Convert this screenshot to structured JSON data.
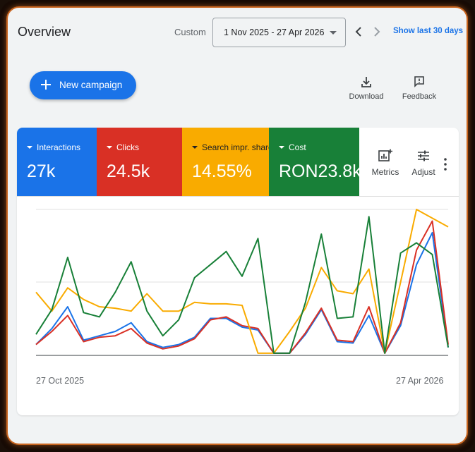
{
  "header": {
    "title": "Overview",
    "range_label": "Custom",
    "date_range": "1 Nov 2025 - 27 Apr 2026",
    "show_last": "Show last 30 days"
  },
  "toolbar": {
    "new_campaign": "New campaign",
    "download": "Download",
    "feedback": "Feedback"
  },
  "metrics": [
    {
      "name": "Interactions",
      "value": "27k",
      "color": "#1a73e8"
    },
    {
      "name": "Clicks",
      "value": "24.5k",
      "color": "#d93025"
    },
    {
      "name": "Search impr. share",
      "value": "14.55%",
      "color": "#f9ab00"
    },
    {
      "name": "Cost",
      "value": "RON23.8k",
      "color": "#188038"
    }
  ],
  "card_tools": {
    "metrics": "Metrics",
    "adjust": "Adjust"
  },
  "chart_data": {
    "type": "line",
    "x_start_label": "27 Oct 2025",
    "x_end_label": "27 Apr 2026",
    "ylim": [
      0,
      100
    ],
    "grid": true,
    "series": [
      {
        "name": "Interactions",
        "color": "#1a73e8",
        "values": [
          7,
          18,
          33,
          10,
          13,
          16,
          22,
          9,
          5,
          7,
          12,
          25,
          25,
          19,
          17,
          1,
          1,
          14,
          31,
          9,
          8,
          27,
          1,
          20,
          62,
          84,
          5
        ]
      },
      {
        "name": "Clicks",
        "color": "#d93025",
        "values": [
          7,
          16,
          27,
          9,
          12,
          13,
          18,
          8,
          4,
          6,
          11,
          24,
          26,
          20,
          18,
          1,
          1,
          15,
          32,
          10,
          9,
          33,
          1,
          22,
          72,
          92,
          7
        ]
      },
      {
        "name": "Search impr. share",
        "color": "#f9ab00",
        "values": [
          43,
          30,
          46,
          38,
          33,
          32,
          30,
          42,
          30,
          30,
          36,
          35,
          35,
          34,
          1,
          1,
          16,
          32,
          60,
          44,
          42,
          59,
          1,
          50,
          100,
          94,
          88
        ]
      },
      {
        "name": "Cost",
        "color": "#188038",
        "values": [
          14,
          31,
          67,
          29,
          26,
          43,
          64,
          30,
          13,
          24,
          53,
          62,
          71,
          54,
          80,
          1,
          1,
          36,
          83,
          25,
          26,
          95,
          1,
          70,
          77,
          69,
          5
        ]
      }
    ]
  }
}
